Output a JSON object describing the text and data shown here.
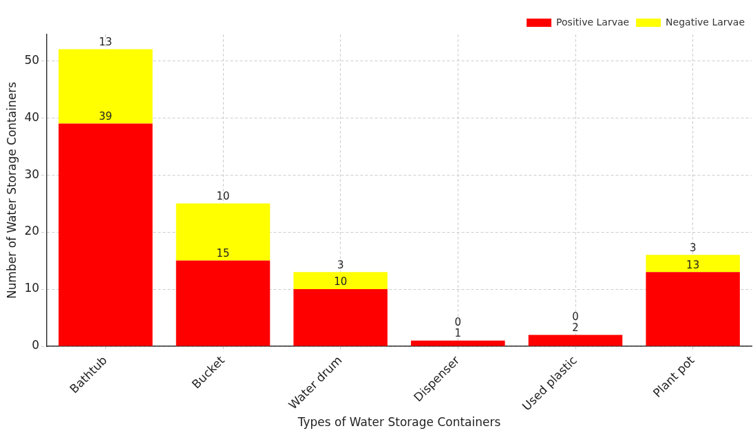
{
  "chart_data": {
    "type": "bar",
    "stacked": true,
    "xlabel": "Types of Water Storage Containers",
    "ylabel": "Number of Water Storage Containers",
    "categories": [
      "Bathtub",
      "Bucket",
      "Water drum",
      "Dispenser",
      "Used plastic",
      "Plant pot"
    ],
    "series": [
      {
        "name": "Positive Larvae",
        "color": "#ff0000",
        "values": [
          39,
          15,
          10,
          1,
          2,
          13
        ]
      },
      {
        "name": "Negative Larvae",
        "color": "#ffff00",
        "values": [
          13,
          10,
          3,
          0,
          0,
          3
        ]
      }
    ],
    "ylim": [
      0,
      54.6
    ],
    "yticks": [
      0,
      10,
      20,
      30,
      40,
      50
    ],
    "grid": true,
    "legend": "top right",
    "data_labels": true
  }
}
